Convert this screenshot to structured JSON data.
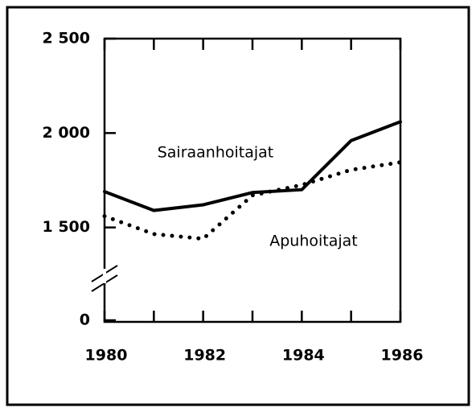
{
  "chart_data": {
    "type": "line",
    "x": [
      1980,
      1981,
      1982,
      1983,
      1984,
      1985,
      1986
    ],
    "series": [
      {
        "name": "Sairaanhoitajat",
        "color": "#000000",
        "dash": "solid",
        "values": [
          1690,
          1590,
          1620,
          1685,
          1700,
          1960,
          2060
        ]
      },
      {
        "name": "Apuhoitajat",
        "color": "#000000",
        "dash": "dotted",
        "values": [
          1560,
          1465,
          1440,
          1670,
          1725,
          1805,
          1845
        ]
      }
    ],
    "xlim": [
      1980,
      1986
    ],
    "xticks": [
      1980,
      1982,
      1984,
      1986
    ],
    "ylim": [
      1000,
      2500
    ],
    "axis_break": true,
    "yticks": [
      0,
      {
        "value": 1500,
        "label": "1 500"
      },
      {
        "value": 2000,
        "label": "2 000"
      },
      {
        "value": 2500,
        "label": "2 500"
      }
    ]
  }
}
